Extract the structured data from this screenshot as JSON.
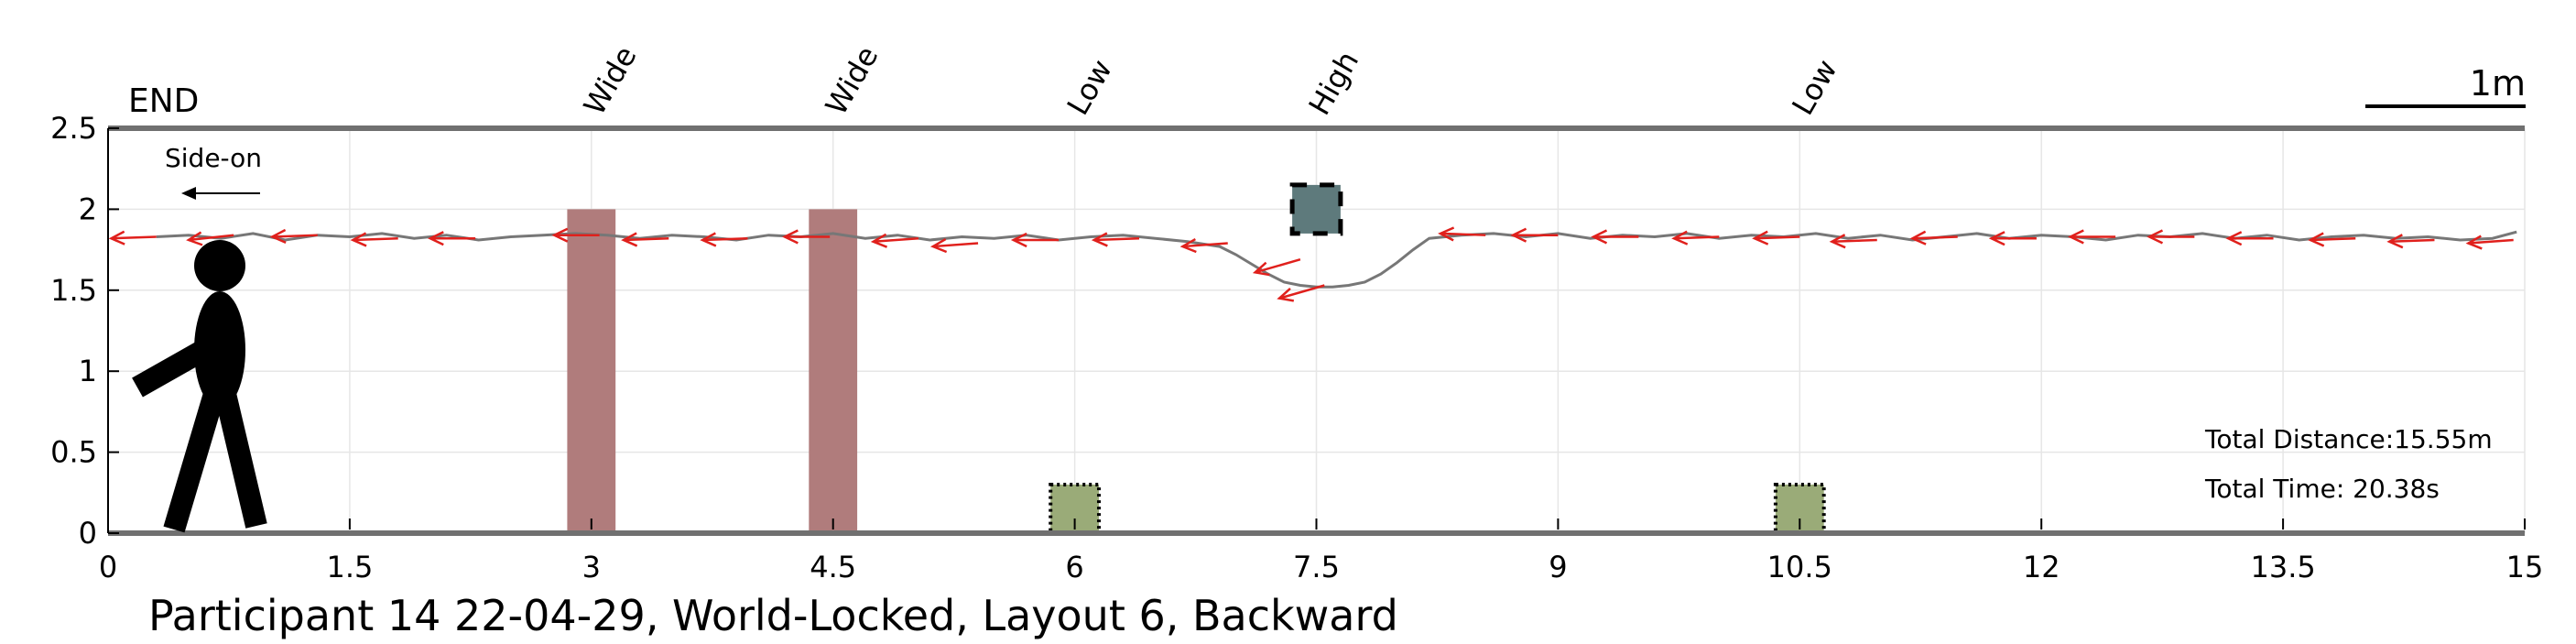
{
  "chart_data": {
    "type": "line",
    "title": "Participant 14 22-04-29, World-Locked, Layout 6, Backward",
    "xlabel": "",
    "ylabel": "",
    "xlim": [
      0,
      15
    ],
    "ylim": [
      0,
      2.5
    ],
    "x_ticks": [
      0,
      1.5,
      3,
      4.5,
      6,
      7.5,
      9,
      10.5,
      12,
      13.5,
      15
    ],
    "x_tick_labels": [
      "0",
      "1.5",
      "3",
      "4.5",
      "6",
      "7.5",
      "9",
      "10.5",
      "12",
      "13.5",
      "15"
    ],
    "y_ticks": [
      0,
      0.5,
      1,
      1.5,
      2,
      2.5
    ],
    "y_tick_labels": [
      "0",
      "0.5",
      "1",
      "1.5",
      "2",
      "2.5"
    ],
    "grid": true,
    "end_label": "END",
    "view_label": "Side-on",
    "scale_bar_label": "1m",
    "scale_bar_length": 1,
    "total_distance": "Total Distance:15.55m",
    "total_time": "Total Time: 20.38s",
    "obstacles": [
      {
        "label": "Wide",
        "kind": "wide",
        "x_center": 3.0,
        "width": 0.3,
        "bottom": 0,
        "top": 2.0,
        "color": "#b07c7c"
      },
      {
        "label": "Wide",
        "kind": "wide",
        "x_center": 4.5,
        "width": 0.3,
        "bottom": 0,
        "top": 2.0,
        "color": "#b07c7c"
      },
      {
        "label": "Low",
        "kind": "low",
        "x_center": 6.0,
        "width": 0.3,
        "bottom": 0,
        "top": 0.3,
        "color": "#9aab78"
      },
      {
        "label": "High",
        "kind": "high",
        "x_center": 7.5,
        "width": 0.3,
        "bottom": 1.85,
        "top": 2.15,
        "color": "#5e7a7c"
      },
      {
        "label": "Low",
        "kind": "low",
        "x_center": 10.5,
        "width": 0.3,
        "bottom": 0,
        "top": 0.3,
        "color": "#9aab78"
      }
    ],
    "series": [
      {
        "color": "#777777",
        "x": [
          0.3,
          0.5,
          0.7,
          0.9,
          1.1,
          1.3,
          1.5,
          1.7,
          1.9,
          2.1,
          2.3,
          2.5,
          2.7,
          2.9,
          3.1,
          3.3,
          3.5,
          3.7,
          3.9,
          4.1,
          4.3,
          4.5,
          4.7,
          4.9,
          5.1,
          5.3,
          5.5,
          5.7,
          5.9,
          6.1,
          6.3,
          6.5,
          6.7,
          6.9,
          7.0,
          7.1,
          7.2,
          7.3,
          7.4,
          7.5,
          7.6,
          7.7,
          7.8,
          7.9,
          8.0,
          8.1,
          8.2,
          8.4,
          8.6,
          8.8,
          9.0,
          9.2,
          9.4,
          9.6,
          9.8,
          10.0,
          10.2,
          10.4,
          10.6,
          10.8,
          11.0,
          11.2,
          11.4,
          11.6,
          11.8,
          12.0,
          12.2,
          12.4,
          12.6,
          12.8,
          13.0,
          13.2,
          13.4,
          13.6,
          13.8,
          14.0,
          14.2,
          14.4,
          14.6,
          14.8,
          14.95
        ],
        "y": [
          1.83,
          1.84,
          1.82,
          1.85,
          1.81,
          1.84,
          1.83,
          1.85,
          1.82,
          1.84,
          1.81,
          1.83,
          1.84,
          1.85,
          1.84,
          1.82,
          1.84,
          1.83,
          1.81,
          1.84,
          1.83,
          1.85,
          1.82,
          1.84,
          1.81,
          1.83,
          1.82,
          1.84,
          1.81,
          1.83,
          1.84,
          1.82,
          1.8,
          1.77,
          1.72,
          1.66,
          1.6,
          1.55,
          1.53,
          1.52,
          1.52,
          1.53,
          1.55,
          1.6,
          1.67,
          1.75,
          1.82,
          1.84,
          1.85,
          1.83,
          1.85,
          1.82,
          1.84,
          1.83,
          1.85,
          1.82,
          1.84,
          1.83,
          1.85,
          1.82,
          1.84,
          1.81,
          1.83,
          1.85,
          1.82,
          1.84,
          1.83,
          1.81,
          1.84,
          1.83,
          1.85,
          1.82,
          1.84,
          1.81,
          1.83,
          1.84,
          1.82,
          1.83,
          1.81,
          1.82,
          1.86
        ]
      }
    ],
    "arrows": {
      "color": "#e0201c",
      "points": [
        {
          "x": 0.3,
          "y": 1.83,
          "dx": -0.28,
          "dy": -0.01
        },
        {
          "x": 0.78,
          "y": 1.84,
          "dx": -0.28,
          "dy": -0.03
        },
        {
          "x": 1.3,
          "y": 1.84,
          "dx": -0.28,
          "dy": -0.01
        },
        {
          "x": 1.8,
          "y": 1.82,
          "dx": -0.28,
          "dy": -0.01
        },
        {
          "x": 2.28,
          "y": 1.82,
          "dx": -0.28,
          "dy": 0.0
        },
        {
          "x": 3.05,
          "y": 1.84,
          "dx": -0.28,
          "dy": 0.0
        },
        {
          "x": 3.48,
          "y": 1.82,
          "dx": -0.28,
          "dy": -0.01
        },
        {
          "x": 3.97,
          "y": 1.82,
          "dx": -0.28,
          "dy": -0.01
        },
        {
          "x": 4.48,
          "y": 1.83,
          "dx": -0.28,
          "dy": 0.0
        },
        {
          "x": 5.03,
          "y": 1.82,
          "dx": -0.28,
          "dy": -0.02
        },
        {
          "x": 5.4,
          "y": 1.79,
          "dx": -0.28,
          "dy": -0.02
        },
        {
          "x": 5.9,
          "y": 1.81,
          "dx": -0.28,
          "dy": 0.0
        },
        {
          "x": 6.4,
          "y": 1.82,
          "dx": -0.28,
          "dy": -0.01
        },
        {
          "x": 6.95,
          "y": 1.79,
          "dx": -0.28,
          "dy": -0.02
        },
        {
          "x": 7.4,
          "y": 1.69,
          "dx": -0.28,
          "dy": -0.08
        },
        {
          "x": 7.55,
          "y": 1.53,
          "dx": -0.28,
          "dy": -0.08
        },
        {
          "x": 8.55,
          "y": 1.84,
          "dx": -0.28,
          "dy": 0.01
        },
        {
          "x": 9.0,
          "y": 1.84,
          "dx": -0.28,
          "dy": 0.0
        },
        {
          "x": 9.5,
          "y": 1.83,
          "dx": -0.28,
          "dy": 0.0
        },
        {
          "x": 10.0,
          "y": 1.83,
          "dx": -0.28,
          "dy": -0.01
        },
        {
          "x": 10.5,
          "y": 1.83,
          "dx": -0.28,
          "dy": -0.01
        },
        {
          "x": 10.98,
          "y": 1.81,
          "dx": -0.28,
          "dy": -0.01
        },
        {
          "x": 11.48,
          "y": 1.83,
          "dx": -0.28,
          "dy": -0.01
        },
        {
          "x": 11.97,
          "y": 1.82,
          "dx": -0.28,
          "dy": 0.0
        },
        {
          "x": 12.46,
          "y": 1.83,
          "dx": -0.28,
          "dy": 0.0
        },
        {
          "x": 12.95,
          "y": 1.83,
          "dx": -0.28,
          "dy": 0.0
        },
        {
          "x": 13.44,
          "y": 1.82,
          "dx": -0.28,
          "dy": 0.0
        },
        {
          "x": 13.95,
          "y": 1.82,
          "dx": -0.28,
          "dy": -0.01
        },
        {
          "x": 14.44,
          "y": 1.81,
          "dx": -0.28,
          "dy": -0.01
        },
        {
          "x": 14.93,
          "y": 1.81,
          "dx": -0.28,
          "dy": -0.02
        }
      ]
    }
  }
}
